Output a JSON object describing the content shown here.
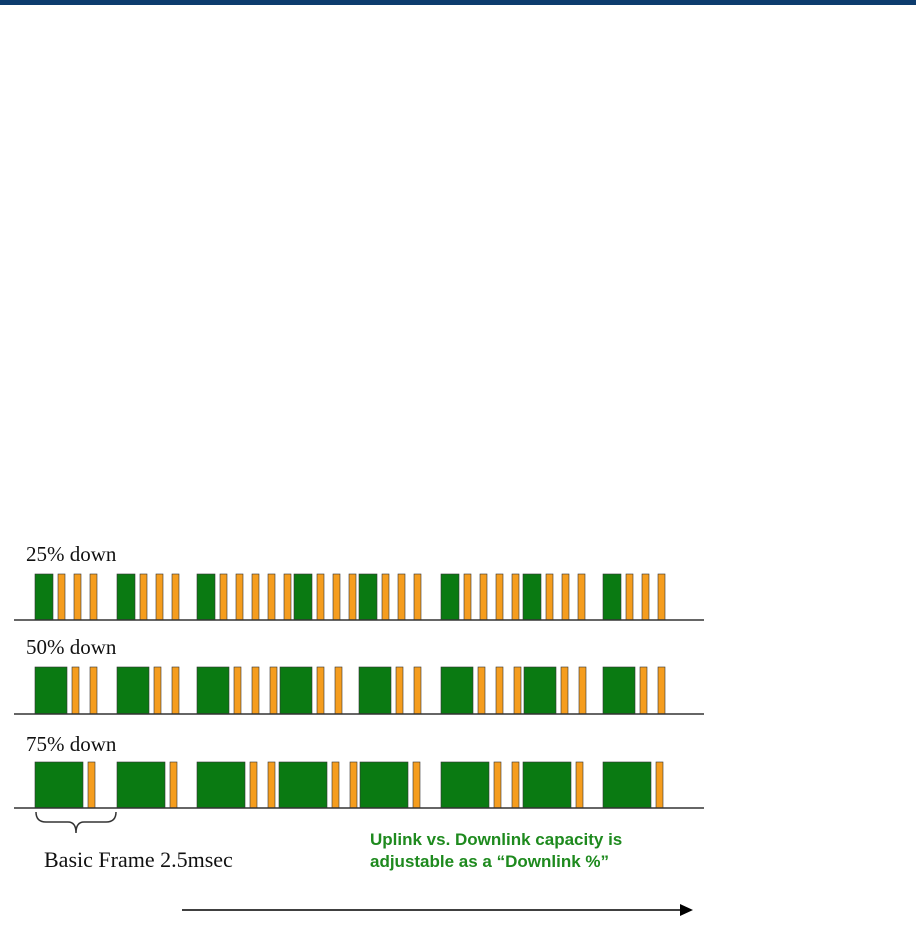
{
  "colors": {
    "downlink": "#0a7a12",
    "uplink": "#f59d1e",
    "outline": "#333333",
    "baseline": "#333333",
    "note_text": "#1e8a1e",
    "top_bar": "#0d3c6e"
  },
  "rows": [
    {
      "label": "25% down",
      "downlink_percent": 25,
      "slots": [
        "down",
        "up",
        "up",
        "up",
        "down",
        "up",
        "up",
        "up",
        "down",
        "up",
        "up",
        "up",
        "up",
        "up",
        "down",
        "up",
        "up",
        "up",
        "down",
        "up",
        "up",
        "up",
        "down",
        "up",
        "up",
        "up",
        "up",
        "down",
        "up",
        "up",
        "up",
        "down",
        "up",
        "up",
        "up"
      ]
    },
    {
      "label": "50% down",
      "downlink_percent": 50,
      "slots": [
        "down",
        "up",
        "up",
        "down",
        "up",
        "up",
        "down",
        "up",
        "up",
        "up",
        "down",
        "up",
        "up",
        "down",
        "up",
        "up",
        "down",
        "up",
        "up",
        "up",
        "down",
        "up",
        "up",
        "down",
        "up",
        "up"
      ]
    },
    {
      "label": "75% down",
      "downlink_percent": 75,
      "slots": [
        "down",
        "up",
        "down",
        "up",
        "down",
        "up",
        "up",
        "down",
        "up",
        "up",
        "down",
        "up",
        "down",
        "up",
        "up",
        "down",
        "up",
        "down",
        "up"
      ]
    }
  ],
  "caption": "Basic Frame 2.5msec",
  "note_line1": "Uplink vs. Downlink capacity is",
  "note_line2": "adjustable as a “Downlink %”"
}
